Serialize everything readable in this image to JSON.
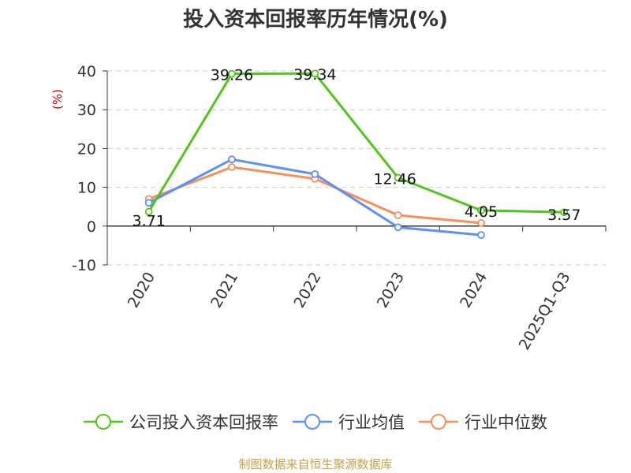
{
  "chart_data": {
    "type": "line",
    "title": "投入资本回报率历年情况(%)",
    "ylabel": "(%)",
    "categories": [
      "2020",
      "2021",
      "2022",
      "2023",
      "2024",
      "2025Q1-Q3"
    ],
    "ylim": [
      -10,
      40
    ],
    "yticks": [
      -10,
      0,
      10,
      20,
      30,
      40
    ],
    "grid": true,
    "legend_position": "bottom",
    "series": [
      {
        "name": "公司投入资本回报率",
        "color": "#52c41a",
        "values": [
          3.71,
          39.26,
          39.34,
          12.46,
          4.05,
          3.57
        ],
        "labels": [
          "3.71",
          "39.26",
          "39.34",
          "12.46",
          "4.05",
          "3.57"
        ]
      },
      {
        "name": "行业均值",
        "color": "#5b8ff9",
        "values": [
          6.0,
          17.2,
          13.4,
          -0.3,
          -2.3,
          null
        ]
      },
      {
        "name": "行业中位数",
        "color": "#f6905a",
        "values": [
          7.0,
          15.2,
          12.2,
          2.8,
          0.8,
          null
        ]
      }
    ]
  },
  "source": "制图数据来自恒生聚源数据库"
}
